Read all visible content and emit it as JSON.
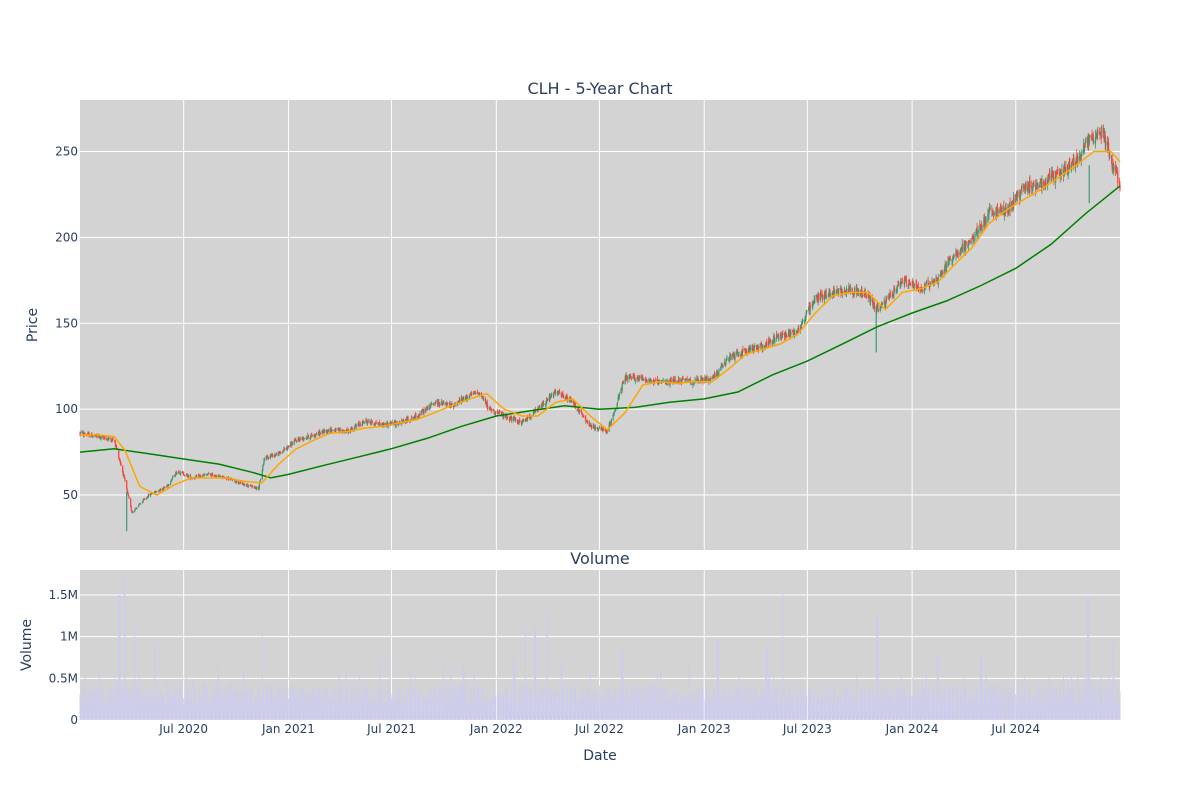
{
  "chart_data": [
    {
      "type": "candlestick",
      "title": "CLH - 5-Year Chart",
      "xlabel": "",
      "ylabel": "Price",
      "x_range": [
        "2020-01-01",
        "2024-12-31"
      ],
      "ylim": [
        18,
        280
      ],
      "y_ticks": [
        50,
        100,
        150,
        200,
        250
      ],
      "grid": true,
      "plot_bg": "#d3d3d3",
      "colors": {
        "increasing": "#3d9970",
        "decreasing": "#ff4136",
        "ma_short": "#ffa500",
        "ma_long": "#008000"
      },
      "price_series": {
        "dates": [
          "2020-01-01",
          "2020-02-01",
          "2020-03-01",
          "2020-03-15",
          "2020-04-01",
          "2020-05-01",
          "2020-06-01",
          "2020-06-20",
          "2020-07-15",
          "2020-08-15",
          "2020-09-15",
          "2020-10-15",
          "2020-11-10",
          "2020-11-20",
          "2020-12-15",
          "2021-01-15",
          "2021-02-15",
          "2021-03-15",
          "2021-04-15",
          "2021-05-15",
          "2021-06-15",
          "2021-07-15",
          "2021-08-15",
          "2021-09-15",
          "2021-10-15",
          "2021-11-15",
          "2021-12-01",
          "2021-12-20",
          "2022-01-15",
          "2022-02-15",
          "2022-03-15",
          "2022-04-15",
          "2022-05-15",
          "2022-06-15",
          "2022-07-15",
          "2022-08-15",
          "2022-09-15",
          "2022-10-15",
          "2022-11-15",
          "2022-12-15",
          "2023-01-15",
          "2023-02-15",
          "2023-03-15",
          "2023-04-15",
          "2023-05-15",
          "2023-06-15",
          "2023-07-15",
          "2023-08-15",
          "2023-09-15",
          "2023-10-15",
          "2023-11-01",
          "2023-11-15",
          "2023-12-15",
          "2024-01-15",
          "2024-02-15",
          "2024-03-15",
          "2024-04-15",
          "2024-05-15",
          "2024-06-15",
          "2024-07-15",
          "2024-08-15",
          "2024-09-15",
          "2024-10-15",
          "2024-11-01",
          "2024-11-15",
          "2024-12-01",
          "2024-12-15",
          "2024-12-31"
        ],
        "close": [
          86,
          84,
          82,
          65,
          40,
          50,
          55,
          64,
          60,
          62,
          60,
          56,
          54,
          72,
          74,
          82,
          85,
          88,
          87,
          93,
          91,
          92,
          96,
          104,
          102,
          108,
          110,
          100,
          96,
          92,
          100,
          110,
          104,
          90,
          87,
          118,
          118,
          115,
          117,
          116,
          118,
          130,
          134,
          137,
          143,
          146,
          165,
          168,
          170,
          166,
          158,
          162,
          175,
          170,
          176,
          190,
          198,
          214,
          216,
          228,
          232,
          237,
          244,
          255,
          258,
          262,
          246,
          230
        ]
      },
      "ma_short": {
        "name": "",
        "dates": [
          "2020-01-01",
          "2020-02-01",
          "2020-03-01",
          "2020-03-20",
          "2020-04-15",
          "2020-05-15",
          "2020-06-15",
          "2020-07-15",
          "2020-08-15",
          "2020-09-15",
          "2020-10-15",
          "2020-11-15",
          "2020-12-15",
          "2021-01-15",
          "2021-02-15",
          "2021-03-15",
          "2021-04-15",
          "2021-05-15",
          "2021-06-15",
          "2021-07-15",
          "2021-08-15",
          "2021-09-15",
          "2021-10-15",
          "2021-11-15",
          "2021-12-15",
          "2022-01-15",
          "2022-02-15",
          "2022-03-15",
          "2022-04-15",
          "2022-05-15",
          "2022-06-15",
          "2022-07-15",
          "2022-08-15",
          "2022-09-15",
          "2022-10-15",
          "2022-11-15",
          "2022-12-15",
          "2023-01-15",
          "2023-02-15",
          "2023-03-15",
          "2023-04-15",
          "2023-05-15",
          "2023-06-15",
          "2023-07-15",
          "2023-08-15",
          "2023-09-15",
          "2023-10-15",
          "2023-11-15",
          "2023-12-15",
          "2024-01-15",
          "2024-02-15",
          "2024-03-15",
          "2024-04-15",
          "2024-05-15",
          "2024-06-15",
          "2024-07-15",
          "2024-08-15",
          "2024-09-15",
          "2024-10-15",
          "2024-11-15",
          "2024-12-15",
          "2024-12-31"
        ],
        "values": [
          85,
          85,
          84,
          76,
          55,
          50,
          56,
          60,
          60,
          60,
          58,
          57,
          68,
          77,
          82,
          86,
          87,
          89,
          90,
          92,
          94,
          98,
          102,
          106,
          109,
          100,
          96,
          96,
          104,
          106,
          96,
          88,
          98,
          114,
          116,
          115,
          116,
          116,
          124,
          132,
          135,
          138,
          144,
          156,
          166,
          168,
          168,
          158,
          168,
          170,
          174,
          184,
          194,
          208,
          216,
          222,
          228,
          235,
          242,
          250,
          250,
          244
        ]
      },
      "ma_long": {
        "name": "",
        "dates": [
          "2020-01-01",
          "2020-03-01",
          "2020-05-01",
          "2020-07-01",
          "2020-09-01",
          "2020-11-01",
          "2020-12-01",
          "2021-01-01",
          "2021-03-01",
          "2021-05-01",
          "2021-07-01",
          "2021-09-01",
          "2021-11-01",
          "2022-01-01",
          "2022-03-01",
          "2022-05-01",
          "2022-07-01",
          "2022-09-01",
          "2022-11-01",
          "2023-01-01",
          "2023-03-01",
          "2023-05-01",
          "2023-07-01",
          "2023-09-01",
          "2023-11-01",
          "2024-01-01",
          "2024-03-01",
          "2024-05-01",
          "2024-07-01",
          "2024-09-01",
          "2024-11-01",
          "2024-12-31"
        ],
        "values": [
          75,
          77,
          74,
          71,
          68,
          63,
          60,
          62,
          67,
          72,
          77,
          83,
          90,
          96,
          99,
          102,
          100,
          101,
          104,
          106,
          110,
          120,
          128,
          138,
          148,
          156,
          163,
          172,
          182,
          196,
          214,
          230
        ]
      }
    },
    {
      "type": "bar",
      "title": "Volume",
      "xlabel": "Date",
      "ylabel": "Volume",
      "ylim": [
        0,
        1800000
      ],
      "y_ticks": [
        0,
        500000,
        1000000,
        1500000
      ],
      "y_tick_labels": [
        "0",
        "0.5M",
        "1M",
        "1.5M"
      ],
      "x_ticks": [
        "2020-07-01",
        "2021-01-01",
        "2021-07-01",
        "2022-01-01",
        "2022-07-01",
        "2023-01-01",
        "2023-07-01",
        "2024-01-01",
        "2024-07-01"
      ],
      "x_tick_labels": [
        "Jul 2020",
        "Jan 2021",
        "Jul 2021",
        "Jan 2022",
        "Jul 2022",
        "Jan 2023",
        "Jul 2023",
        "Jan 2024",
        "Jul 2024"
      ],
      "bar_color": "#ccccee",
      "spikes": [
        {
          "date": "2020-03-10",
          "value": 1500000
        },
        {
          "date": "2020-03-20",
          "value": 1750000
        },
        {
          "date": "2020-04-05",
          "value": 1100000
        },
        {
          "date": "2020-05-10",
          "value": 950000
        },
        {
          "date": "2020-11-15",
          "value": 1050000
        },
        {
          "date": "2021-11-05",
          "value": 650000
        },
        {
          "date": "2022-02-20",
          "value": 1100000
        },
        {
          "date": "2022-03-10",
          "value": 1100000
        },
        {
          "date": "2022-04-01",
          "value": 1270000
        },
        {
          "date": "2022-04-25",
          "value": 700000
        },
        {
          "date": "2022-08-10",
          "value": 820000
        },
        {
          "date": "2023-01-25",
          "value": 950000
        },
        {
          "date": "2023-04-20",
          "value": 900000
        },
        {
          "date": "2023-05-20",
          "value": 1550000
        },
        {
          "date": "2023-11-01",
          "value": 1270000
        },
        {
          "date": "2024-02-15",
          "value": 780000
        },
        {
          "date": "2024-05-01",
          "value": 780000
        },
        {
          "date": "2024-11-05",
          "value": 1480000
        },
        {
          "date": "2024-12-20",
          "value": 950000
        }
      ]
    }
  ]
}
